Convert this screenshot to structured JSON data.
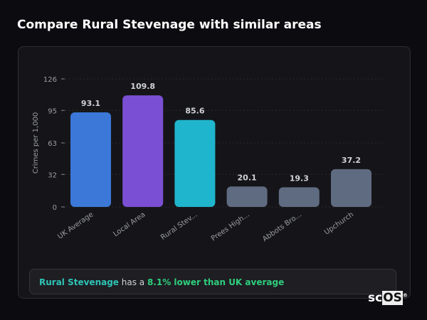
{
  "header": {
    "title": "Compare Rural Stevenage with similar areas"
  },
  "chart_data": {
    "type": "bar",
    "ylabel": "Crimes per 1,000",
    "xlabel": "",
    "ylim": [
      0,
      126
    ],
    "yticks": [
      0,
      32,
      63,
      95,
      126
    ],
    "grid": true,
    "categories": [
      "UK Average",
      "Local Area",
      "Rural Stev...",
      "Prees High...",
      "Abbots Bro...",
      "Upchurch"
    ],
    "values": [
      93.1,
      109.8,
      85.6,
      20.1,
      19.3,
      37.2
    ],
    "value_labels": [
      "93.1",
      "109.8",
      "85.6",
      "20.1",
      "19.3",
      "37.2"
    ],
    "colors": [
      "#3b78d8",
      "#7b4fd4",
      "#1fb5cc",
      "#5f6b80",
      "#5f6b80",
      "#5f6b80"
    ]
  },
  "insight": {
    "area": "Rural Stevenage",
    "middle": " has a ",
    "stat": "8.1% lower than UK average"
  },
  "logo": {
    "text": "scOS"
  }
}
